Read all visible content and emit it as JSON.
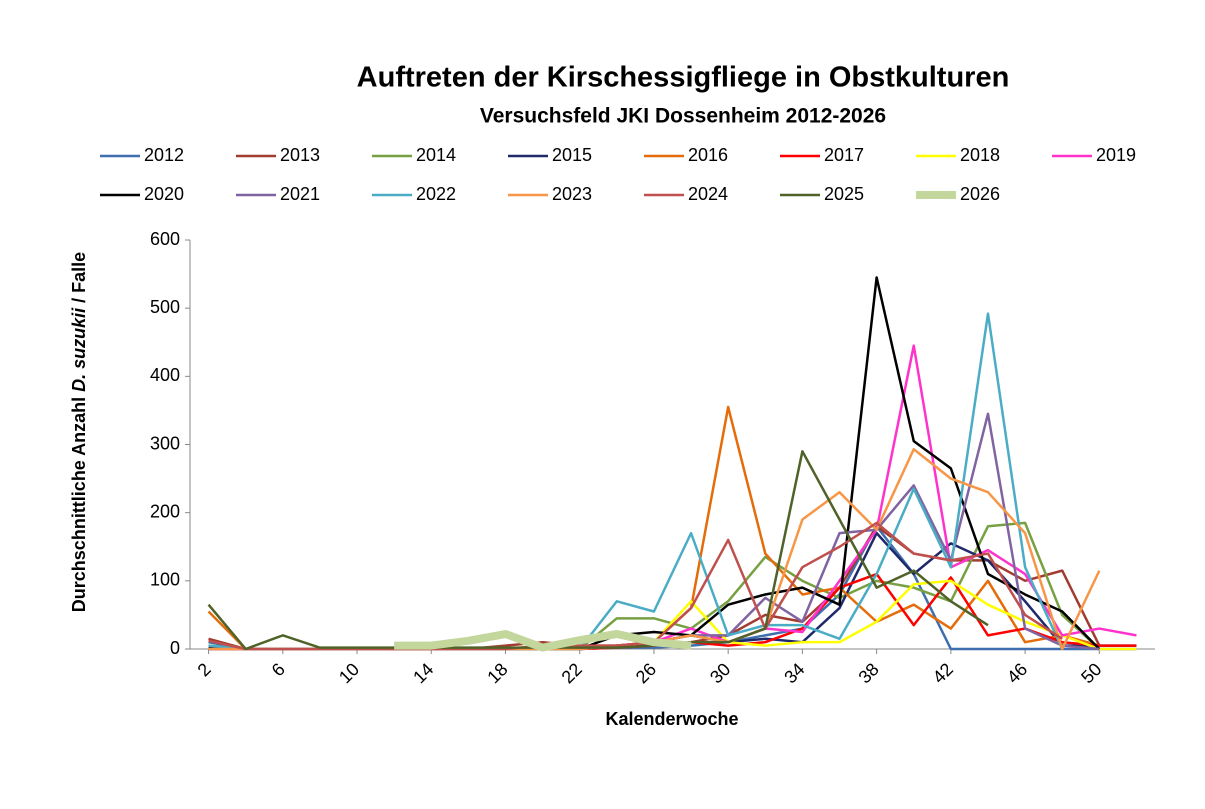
{
  "chart_data": {
    "type": "line",
    "title": "Auftreten der Kirschessigfliege in Obstkulturen",
    "subtitle": "Versuchsfeld JKI Dossenheim 2012-2026",
    "x_label": "Kalenderwoche",
    "y_label": [
      "Durchschnittliche Anzahl ",
      "D. suzukii",
      " / Falle"
    ],
    "legend": "top",
    "x": [
      2,
      4,
      6,
      8,
      10,
      12,
      14,
      16,
      18,
      20,
      22,
      24,
      26,
      28,
      30,
      32,
      34,
      36,
      38,
      40,
      42,
      44,
      46,
      48,
      50,
      52
    ],
    "xlim": [
      1,
      53
    ],
    "xticks": [
      2,
      6,
      10,
      14,
      18,
      22,
      26,
      30,
      34,
      38,
      42,
      46,
      50
    ],
    "ylim": [
      0,
      600
    ],
    "yticks": [
      0,
      100,
      200,
      300,
      400,
      500,
      600
    ],
    "series": [
      {
        "name": "2012",
        "color": "#3f6fae",
        "values": [
          10,
          0,
          0,
          0,
          0,
          0,
          0,
          0,
          0,
          0,
          0,
          2,
          2,
          5,
          10,
          20,
          30,
          80,
          180,
          110,
          0,
          0,
          0,
          0,
          0,
          0
        ]
      },
      {
        "name": "2013",
        "color": "#a23b30",
        "values": [
          15,
          0,
          0,
          0,
          0,
          0,
          0,
          0,
          5,
          10,
          5,
          5,
          5,
          10,
          20,
          50,
          40,
          90,
          180,
          140,
          130,
          130,
          100,
          115,
          5,
          null
        ]
      },
      {
        "name": "2014",
        "color": "#77a043",
        "values": [
          5,
          0,
          0,
          0,
          0,
          0,
          0,
          0,
          0,
          0,
          0,
          45,
          45,
          30,
          70,
          135,
          100,
          75,
          100,
          90,
          70,
          180,
          185,
          50,
          0,
          null
        ]
      },
      {
        "name": "2015",
        "color": "#1f2a6b",
        "values": [
          3,
          0,
          0,
          0,
          0,
          0,
          0,
          0,
          0,
          0,
          0,
          5,
          10,
          20,
          10,
          15,
          10,
          60,
          170,
          110,
          155,
          130,
          70,
          5,
          5,
          5
        ]
      },
      {
        "name": "2016",
        "color": "#e46c0a",
        "values": [
          55,
          0,
          0,
          0,
          0,
          0,
          0,
          0,
          0,
          0,
          0,
          5,
          10,
          60,
          355,
          140,
          80,
          90,
          40,
          65,
          30,
          100,
          10,
          20,
          5,
          null
        ]
      },
      {
        "name": "2017",
        "color": "#ff0000",
        "values": [
          0,
          0,
          0,
          0,
          0,
          0,
          0,
          0,
          0,
          0,
          0,
          2,
          5,
          10,
          5,
          10,
          30,
          90,
          110,
          35,
          105,
          20,
          30,
          10,
          5,
          5
        ]
      },
      {
        "name": "2018",
        "color": "#ffff00",
        "values": [
          0,
          0,
          0,
          0,
          0,
          0,
          0,
          0,
          0,
          0,
          0,
          5,
          10,
          70,
          10,
          5,
          10,
          10,
          40,
          95,
          100,
          65,
          40,
          20,
          0,
          0
        ]
      },
      {
        "name": "2019",
        "color": "#ff33cc",
        "values": [
          0,
          0,
          0,
          0,
          0,
          0,
          0,
          0,
          0,
          0,
          0,
          5,
          10,
          30,
          10,
          30,
          25,
          100,
          175,
          445,
          120,
          145,
          110,
          20,
          30,
          20
        ]
      },
      {
        "name": "2020",
        "color": "#000000",
        "values": [
          3,
          0,
          0,
          0,
          0,
          0,
          0,
          0,
          0,
          0,
          0,
          20,
          25,
          20,
          65,
          80,
          90,
          65,
          545,
          305,
          265,
          110,
          80,
          55,
          0,
          null
        ]
      },
      {
        "name": "2021",
        "color": "#8064a2",
        "values": [
          0,
          0,
          0,
          0,
          0,
          0,
          0,
          0,
          0,
          0,
          0,
          5,
          10,
          20,
          20,
          75,
          40,
          170,
          175,
          240,
          130,
          345,
          30,
          5,
          0,
          null
        ]
      },
      {
        "name": "2022",
        "color": "#4bacc6",
        "values": [
          5,
          0,
          0,
          0,
          0,
          0,
          0,
          0,
          0,
          0,
          0,
          70,
          55,
          170,
          20,
          35,
          35,
          15,
          110,
          235,
          120,
          492,
          120,
          0,
          null,
          null
        ]
      },
      {
        "name": "2023",
        "color": "#f79646",
        "values": [
          0,
          0,
          0,
          0,
          0,
          0,
          0,
          0,
          0,
          0,
          0,
          5,
          10,
          20,
          10,
          30,
          190,
          230,
          175,
          293,
          250,
          230,
          170,
          0,
          115,
          null
        ]
      },
      {
        "name": "2024",
        "color": "#c0504d",
        "values": [
          12,
          0,
          0,
          0,
          0,
          0,
          0,
          0,
          0,
          5,
          5,
          5,
          10,
          60,
          160,
          30,
          120,
          150,
          185,
          140,
          130,
          140,
          50,
          15,
          null,
          null
        ]
      },
      {
        "name": "2025",
        "color": "#4f6228",
        "values": [
          65,
          0,
          20,
          2,
          2,
          2,
          2,
          2,
          2,
          2,
          2,
          2,
          5,
          10,
          10,
          30,
          290,
          190,
          90,
          115,
          70,
          35,
          null,
          null,
          null,
          null
        ]
      },
      {
        "name": "2026",
        "color": "#c3d69b",
        "values": [
          null,
          null,
          null,
          null,
          null,
          5,
          5,
          12,
          22,
          2,
          13,
          22,
          10,
          5,
          null,
          null,
          null,
          null,
          null,
          null,
          null,
          null,
          null,
          null,
          null,
          null
        ]
      }
    ]
  }
}
